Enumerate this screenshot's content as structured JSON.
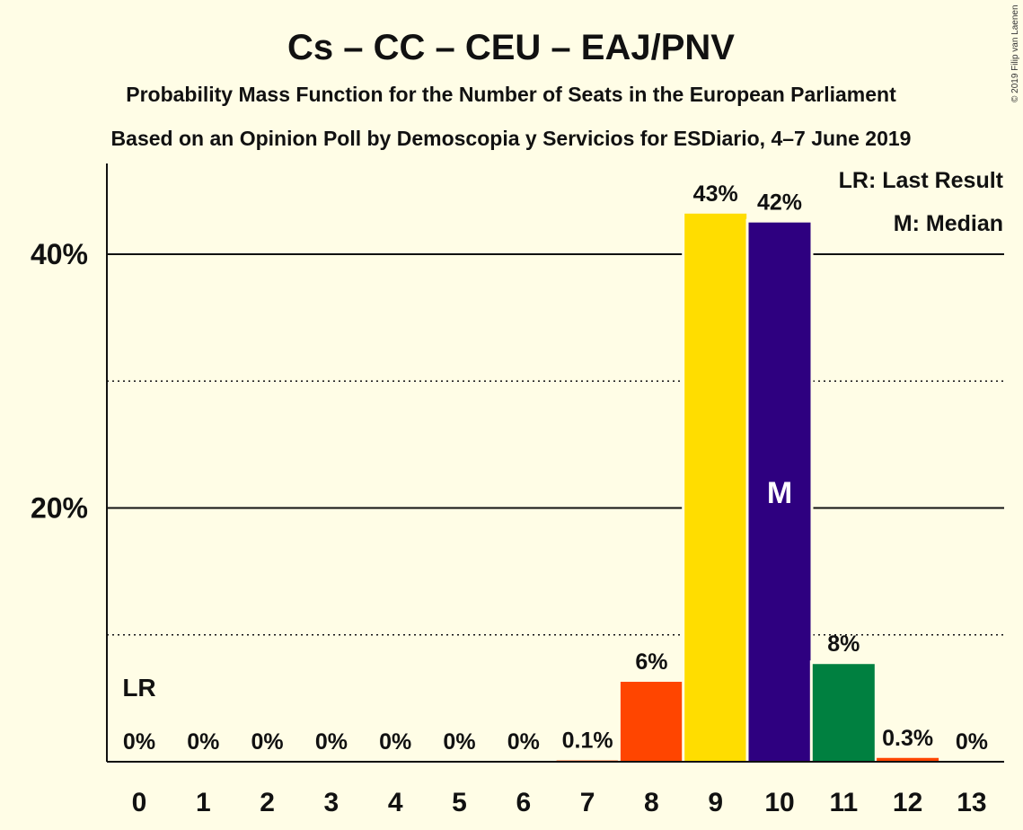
{
  "chart_data": {
    "type": "bar",
    "title": "Cs – CC – CEU – EAJ/PNV",
    "subtitle": [
      "Probability Mass Function for the Number of Seats in the European Parliament",
      "Based on an Opinion Poll by Demoscopia y Servicios for ESDiario, 4–7 June 2019"
    ],
    "categories": [
      "0",
      "1",
      "2",
      "3",
      "4",
      "5",
      "6",
      "7",
      "8",
      "9",
      "10",
      "11",
      "12",
      "13"
    ],
    "values": [
      0,
      0,
      0,
      0,
      0,
      0,
      0,
      0.1,
      6.3,
      43.2,
      42.5,
      7.7,
      0.3,
      0
    ],
    "labels": [
      "0%",
      "0%",
      "0%",
      "0%",
      "0%",
      "0%",
      "0%",
      "0.1%",
      "6%",
      "43%",
      "42%",
      "8%",
      "0.3%",
      "0%"
    ],
    "colors": [
      "#FF4500",
      "#FF4500",
      "#FF4500",
      "#FF4500",
      "#FF4500",
      "#FF4500",
      "#FF4500",
      "#FF4500",
      "#FF4500",
      "#FFDD00",
      "#2E0080",
      "#008040",
      "#FF4500",
      "#FF4500"
    ],
    "ylim": [
      0,
      47
    ],
    "yticks": [
      {
        "value": 20,
        "label": "20%",
        "style": "solid"
      },
      {
        "value": 40,
        "label": "40%",
        "style": "solid"
      }
    ],
    "ygrid_dotted": [
      10,
      30
    ],
    "last_result": {
      "index": 0,
      "label": "LR"
    },
    "median": {
      "index": 10,
      "label": "M"
    },
    "legend": {
      "placement": "top-right",
      "entries": [
        "LR: Last Result",
        "M: Median"
      ]
    },
    "copyright": "© 2019 Filip van Laenen",
    "colors_meta": {
      "background": "#FFFDE6"
    }
  }
}
